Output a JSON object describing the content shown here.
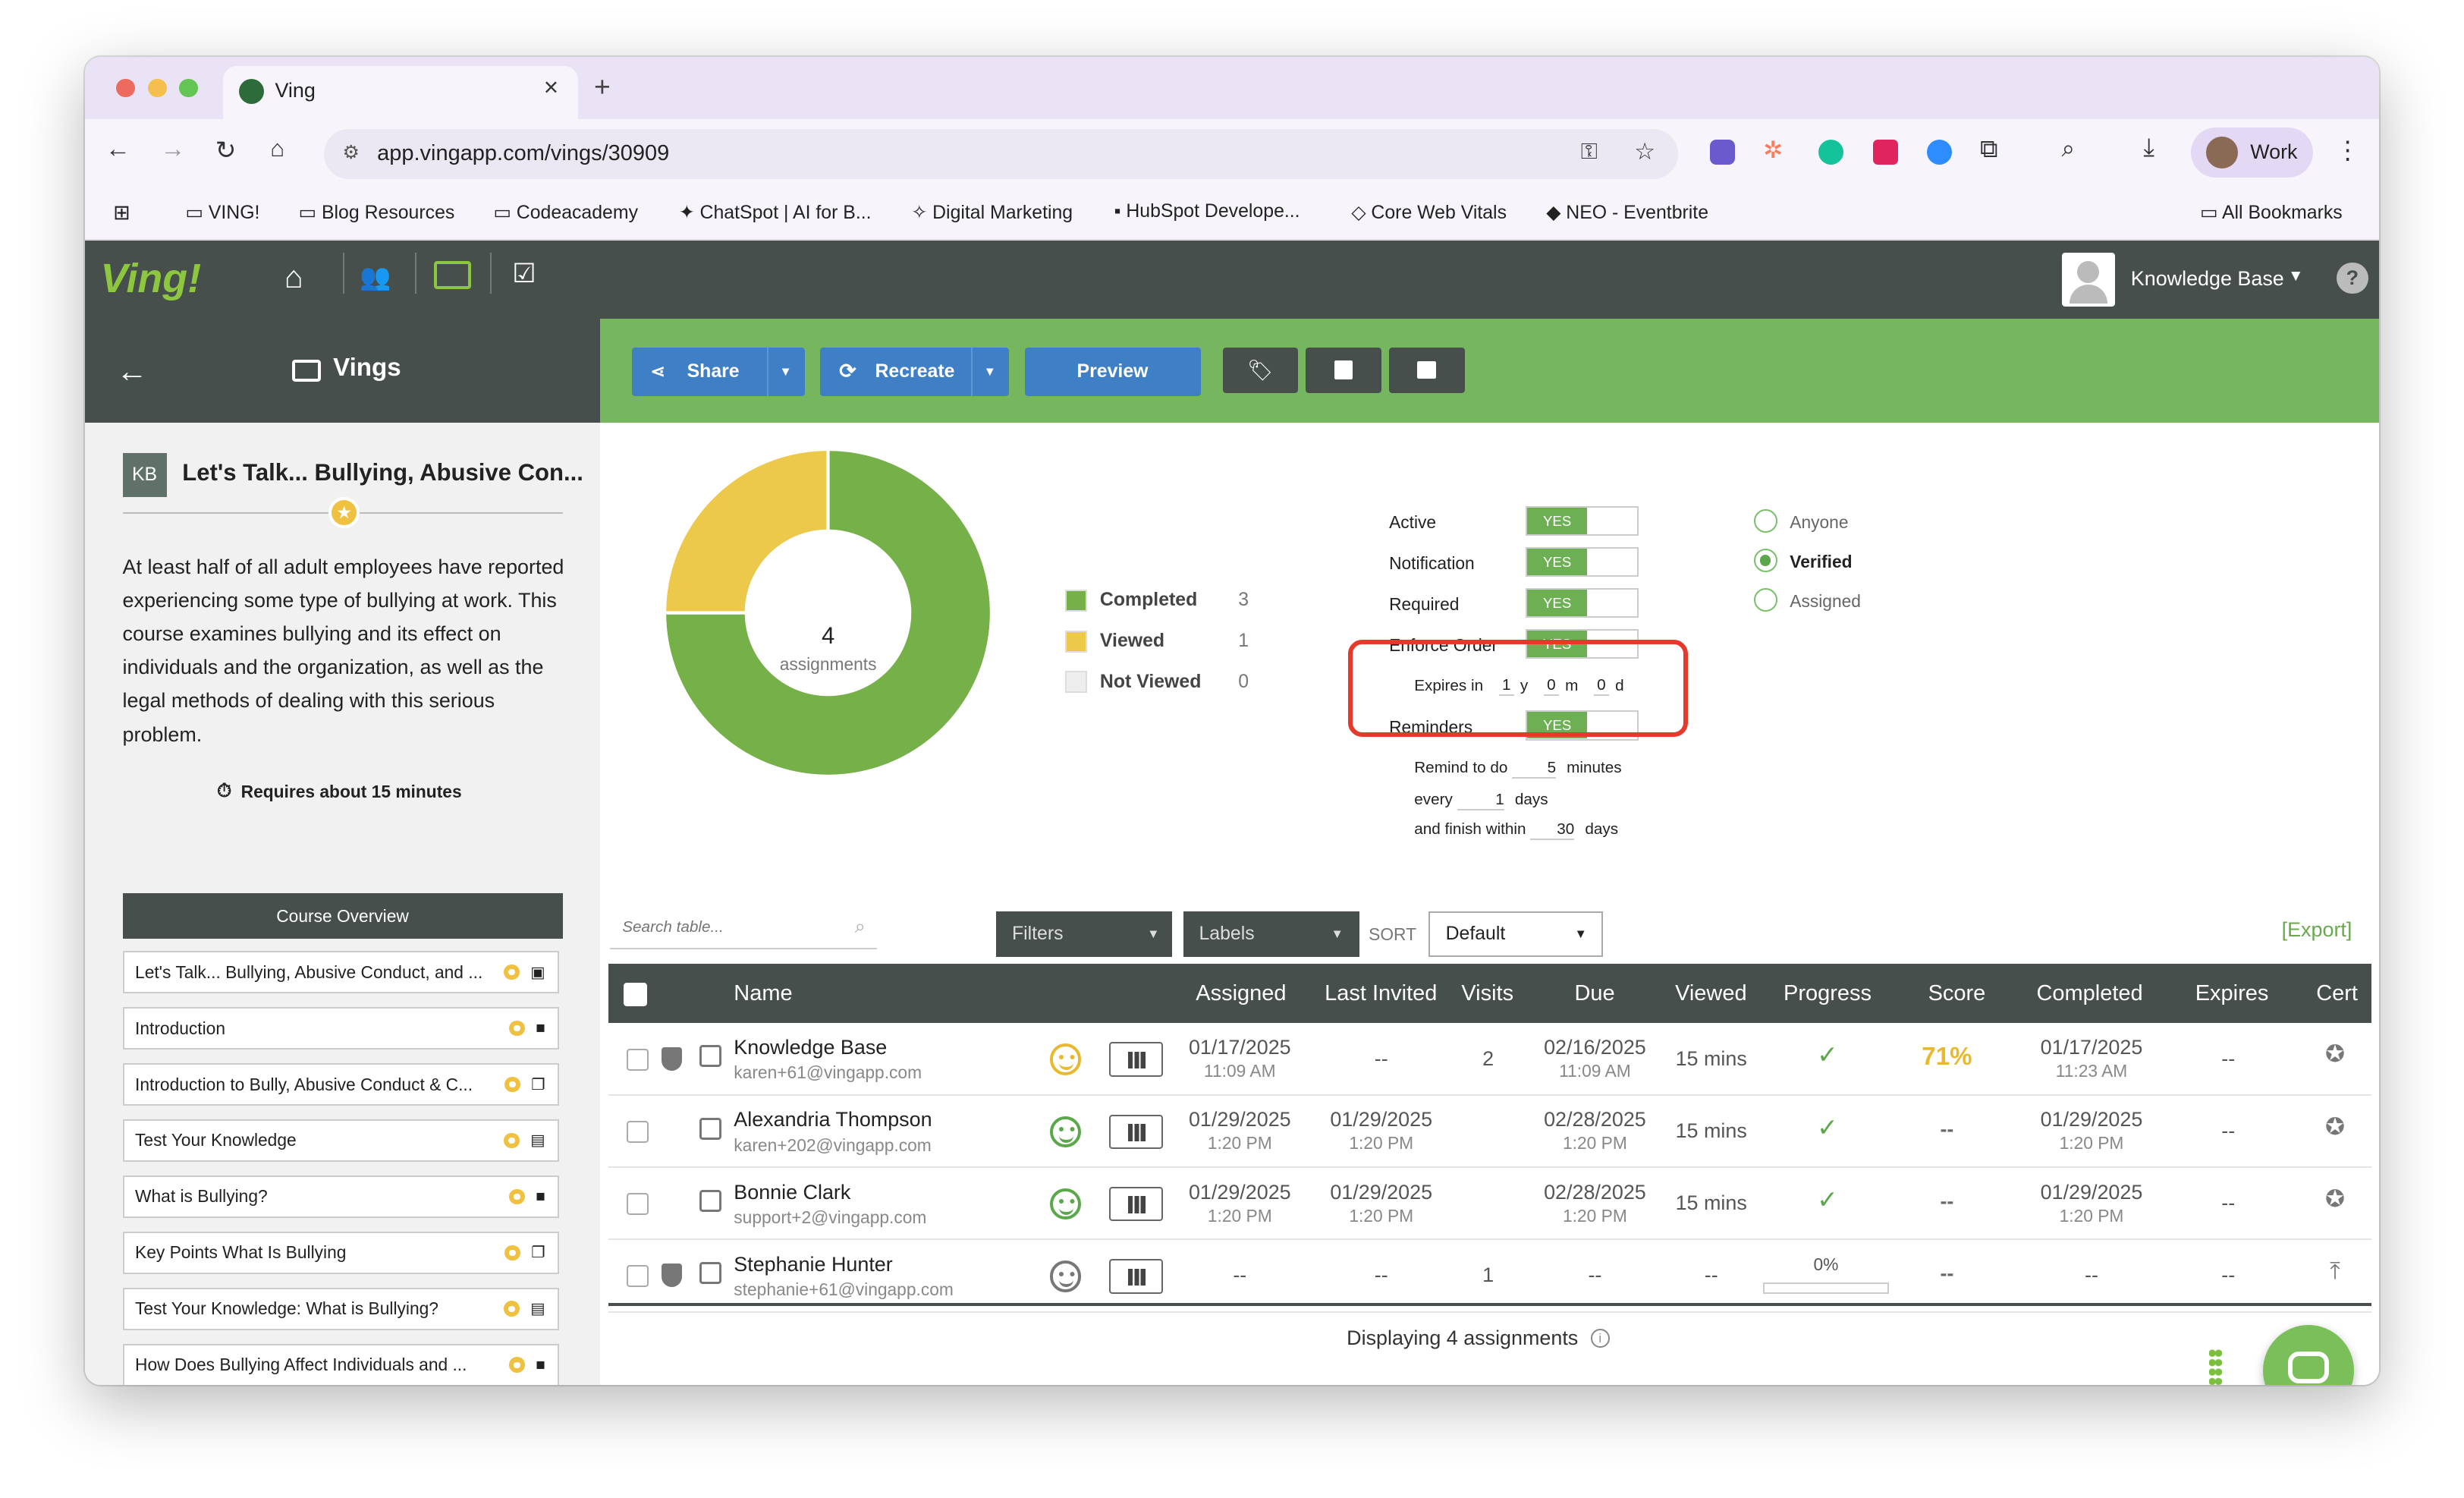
{
  "browser": {
    "tab_title": "Ving",
    "url": "app.vingapp.com/vings/30909",
    "profile_label": "Work",
    "bookmarks": [
      "VING!",
      "Blog Resources",
      "Codeacademy",
      "ChatSpot | AI for B...",
      "Digital Marketing",
      "HubSpot Develope...",
      "Core Web Vitals",
      "NEO - Eventbrite"
    ],
    "all_bookmarks": "All Bookmarks"
  },
  "app": {
    "logo": "Ving!",
    "user_label": "Knowledge Base",
    "help_label": "?"
  },
  "sidebar": {
    "section_title": "Vings",
    "avatar_initials": "KB",
    "course_title": "Let's Talk... Bullying, Abusive Con...",
    "description": "At least half of all adult employees have reported experiencing some type of bullying at work. This course examines bullying and its effect on individuals and the organization, as well as the legal methods of dealing with this serious problem.",
    "duration": "Requires about 15 minutes",
    "overview_label": "Course Overview",
    "items": [
      {
        "label": "Let's Talk... Bullying, Abusive Conduct, and ...",
        "icon": "image-icon"
      },
      {
        "label": "Introduction",
        "icon": "video-icon"
      },
      {
        "label": "Introduction to Bully, Abusive Conduct & C...",
        "icon": "copy-icon"
      },
      {
        "label": "Test Your Knowledge",
        "icon": "clipboard-icon"
      },
      {
        "label": "What is Bullying?",
        "icon": "video-icon"
      },
      {
        "label": "Key Points What Is Bullying",
        "icon": "copy-icon"
      },
      {
        "label": "Test Your Knowledge: What is Bullying?",
        "icon": "clipboard-icon"
      },
      {
        "label": "How Does Bullying Affect Individuals and ...",
        "icon": "video-icon"
      }
    ]
  },
  "toolbar": {
    "share": "Share",
    "recreate": "Recreate",
    "preview": "Preview"
  },
  "donut": {
    "center_value": "4",
    "center_label": "assignments",
    "legend": [
      {
        "label": "Completed",
        "count": "3",
        "color": "#76b048"
      },
      {
        "label": "Viewed",
        "count": "1",
        "color": "#ecc94b"
      },
      {
        "label": "Not Viewed",
        "count": "0",
        "color": "#eeeeee"
      }
    ]
  },
  "settings": {
    "toggles": [
      {
        "label": "Active",
        "value": "YES"
      },
      {
        "label": "Notification",
        "value": "YES"
      },
      {
        "label": "Required",
        "value": "YES"
      },
      {
        "label": "Enforce Order",
        "value": "YES"
      },
      {
        "label": "Reminders",
        "value": "YES"
      }
    ],
    "expires_label": "Expires in",
    "expires_y": "1",
    "y": "y",
    "expires_m": "0",
    "m": "m",
    "expires_d": "0",
    "d": "d",
    "remind_label": "Remind to do",
    "remind_value": "5",
    "remind_unit": "minutes",
    "every_label": "every",
    "every_value": "1",
    "every_unit": "days",
    "finish_label": "and finish within",
    "finish_value": "30",
    "finish_unit": "days",
    "audience": [
      {
        "label": "Anyone",
        "selected": false
      },
      {
        "label": "Verified",
        "selected": true
      },
      {
        "label": "Assigned",
        "selected": false
      }
    ]
  },
  "table_controls": {
    "search_placeholder": "Search table...",
    "filters": "Filters",
    "labels": "Labels",
    "sort_label": "SORT",
    "sort_value": "Default",
    "export": "[Export]"
  },
  "table": {
    "headers": [
      "Name",
      "Assigned",
      "Last Invited",
      "Visits",
      "Due",
      "Viewed",
      "Progress",
      "Score",
      "Completed",
      "Expires",
      "Cert"
    ],
    "rows": [
      {
        "name": "Knowledge Base",
        "email": "karen+61@vingapp.com",
        "assigned_date": "01/17/2025",
        "assigned_time": "11:09 AM",
        "invited_date": "--",
        "invited_time": "",
        "visits": "2",
        "due_date": "02/16/2025",
        "due_time": "11:09 AM",
        "viewed": "15 mins",
        "progress": "check",
        "score": "71%",
        "completed_date": "01/17/2025",
        "completed_time": "11:23 AM",
        "expires": "--",
        "face_color": "#e8b92f"
      },
      {
        "name": "Alexandria Thompson",
        "email": "karen+202@vingapp.com",
        "assigned_date": "01/29/2025",
        "assigned_time": "1:20 PM",
        "invited_date": "01/29/2025",
        "invited_time": "1:20 PM",
        "visits": "",
        "due_date": "02/28/2025",
        "due_time": "1:20 PM",
        "viewed": "15 mins",
        "progress": "check",
        "score": "--",
        "completed_date": "01/29/2025",
        "completed_time": "1:20 PM",
        "expires": "--",
        "face_color": "#5aa84a"
      },
      {
        "name": "Bonnie Clark",
        "email": "support+2@vingapp.com",
        "assigned_date": "01/29/2025",
        "assigned_time": "1:20 PM",
        "invited_date": "01/29/2025",
        "invited_time": "1:20 PM",
        "visits": "",
        "due_date": "02/28/2025",
        "due_time": "1:20 PM",
        "viewed": "15 mins",
        "progress": "check",
        "score": "--",
        "completed_date": "01/29/2025",
        "completed_time": "1:20 PM",
        "expires": "--",
        "face_color": "#5aa84a"
      },
      {
        "name": "Stephanie Hunter",
        "email": "stephanie+61@vingapp.com",
        "assigned_date": "--",
        "assigned_time": "",
        "invited_date": "--",
        "invited_time": "",
        "visits": "1",
        "due_date": "--",
        "due_time": "",
        "viewed": "--",
        "progress": "0%",
        "score": "--",
        "completed_date": "--",
        "completed_time": "",
        "expires": "--",
        "face_color": "#777777"
      }
    ],
    "footer": "Displaying 4 assignments"
  }
}
